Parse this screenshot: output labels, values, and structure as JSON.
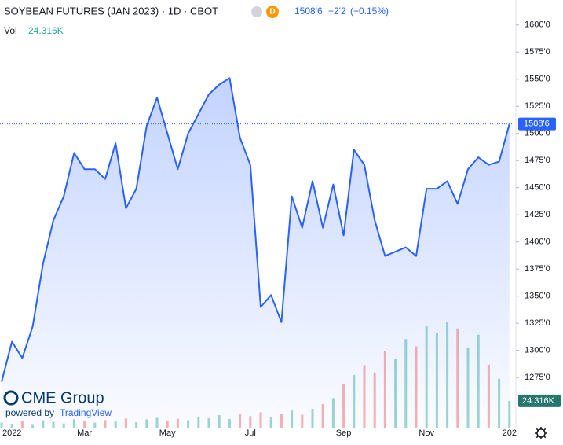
{
  "chart_data": {
    "type": "line",
    "title": "SOYBEAN FUTURES (JAN 2023) · 1D · CBOT",
    "badge": "D",
    "last": {
      "value": 1508.75,
      "label": "1508'6"
    },
    "change": {
      "value": 2.25,
      "label": "+2'2"
    },
    "change_pct": {
      "value": 0.15,
      "label": "(+0.15%)"
    },
    "color": "#2962ff",
    "categories": [
      null,
      "2022",
      null,
      null,
      null,
      null,
      null,
      null,
      "Mar",
      null,
      null,
      null,
      null,
      null,
      null,
      null,
      "May",
      null,
      null,
      null,
      null,
      null,
      null,
      null,
      "Jul",
      null,
      null,
      null,
      null,
      null,
      null,
      null,
      null,
      "Sep",
      null,
      null,
      null,
      null,
      null,
      null,
      null,
      "Nov",
      null,
      null,
      null,
      null,
      null,
      null,
      null,
      "202"
    ],
    "values": [
      1271,
      1308,
      1293,
      1322,
      1380,
      1420,
      1442,
      1482,
      1467,
      1467,
      1458,
      1491,
      1431,
      1449,
      1507,
      1533,
      1500,
      1467,
      1500,
      1518,
      1536,
      1545,
      1551,
      1496,
      1471,
      1340,
      1351,
      1326,
      1442,
      1413,
      1456,
      1413,
      1453,
      1406,
      1485,
      1471,
      1420,
      1387,
      1391,
      1395,
      1387,
      1449,
      1449,
      1456,
      1435,
      1467,
      1478,
      1471,
      1474,
      1508.75
    ],
    "ylim": [
      1228,
      1623
    ],
    "yticks": [
      {
        "value": 1275,
        "label": "1275'0"
      },
      {
        "value": 1300,
        "label": "1300'0"
      },
      {
        "value": 1325,
        "label": "1325'0"
      },
      {
        "value": 1350,
        "label": "1350'0"
      },
      {
        "value": 1375,
        "label": "1375'0"
      },
      {
        "value": 1400,
        "label": "1400'0"
      },
      {
        "value": 1425,
        "label": "1425'0"
      },
      {
        "value": 1450,
        "label": "1450'0"
      },
      {
        "value": 1475,
        "label": "1475'0"
      },
      {
        "value": 1500,
        "label": "1500'0"
      },
      {
        "value": 1525,
        "label": "1525'0"
      },
      {
        "value": 1550,
        "label": "1550'0"
      },
      {
        "value": 1575,
        "label": "1575'0"
      },
      {
        "value": 1600,
        "label": "1600'0"
      }
    ],
    "volume": {
      "label": "Vol",
      "values": [
        5200,
        4100,
        6300,
        3800,
        7200,
        5900,
        4400,
        8100,
        6500,
        5200,
        7400,
        6100,
        8800,
        5600,
        7900,
        9400,
        6800,
        8600,
        7300,
        10200,
        9100,
        11800,
        8400,
        12600,
        10900,
        14300,
        9800,
        13200,
        15800,
        12100,
        17400,
        21500,
        26800,
        38900,
        47200,
        55800,
        49300,
        68400,
        61200,
        78900,
        72500,
        90100,
        84300,
        93600,
        88200,
        71500,
        82700,
        56300,
        43800,
        24316
      ],
      "value_labels": [
        null,
        null,
        null,
        null,
        null,
        null,
        null,
        null,
        null,
        null,
        null,
        null,
        null,
        null,
        null,
        null,
        null,
        null,
        null,
        null,
        null,
        null,
        null,
        null,
        null,
        null,
        null,
        null,
        null,
        null,
        null,
        null,
        null,
        null,
        null,
        null,
        null,
        null,
        null,
        null,
        null,
        null,
        null,
        null,
        null,
        null,
        null,
        null,
        null,
        "24.316K"
      ],
      "up_color": "#26a69a",
      "down_color": "#ef5350"
    }
  },
  "branding": {
    "logo": "CME Group",
    "powered_by": "powered by",
    "provider": "TradingView"
  }
}
